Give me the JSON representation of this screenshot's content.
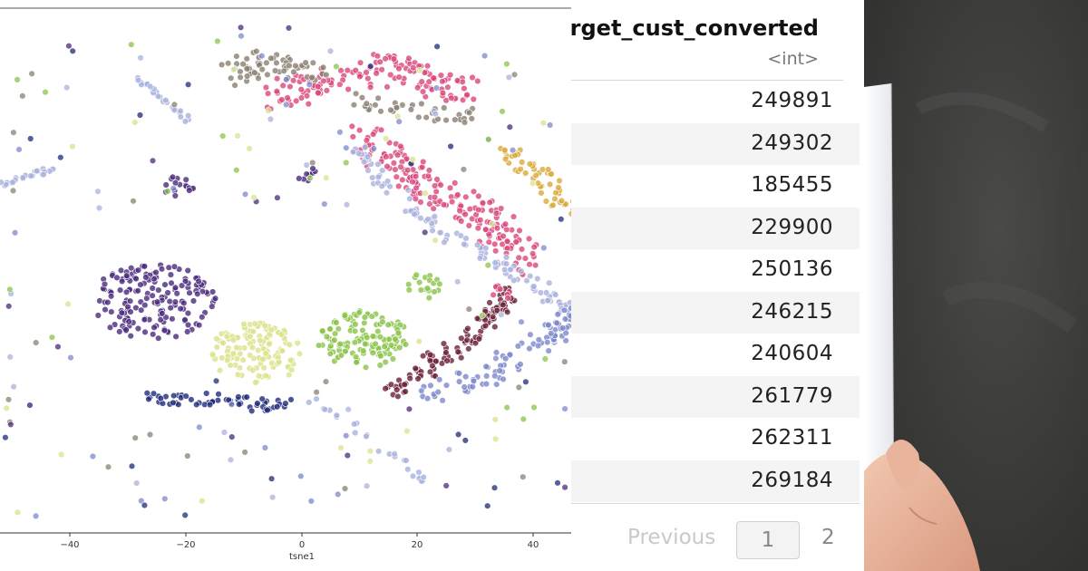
{
  "scatter": {
    "x_ticks": [
      "−40",
      "−20",
      "0",
      "20",
      "40"
    ],
    "x_label": "tsne1",
    "colors": {
      "lavender": "#a9b1dd",
      "purple": "#4a2a7d",
      "pink": "#d9477a",
      "gray_brown": "#8a8070",
      "navy": "#1f2a7a",
      "yellow_green": "#d9e28a",
      "green": "#8bc34a",
      "maroon": "#6b1f3a",
      "periwinkle": "#7d88cc",
      "gold": "#d9a93c"
    }
  },
  "table": {
    "column_title": "arget_cust_converted",
    "column_type": "<int>",
    "values": [
      "249891",
      "249302",
      "185455",
      "229900",
      "250136",
      "246215",
      "240604",
      "261779",
      "262311",
      "269184"
    ],
    "pagination": {
      "previous": "Previous",
      "current": "1",
      "next": "2"
    }
  }
}
